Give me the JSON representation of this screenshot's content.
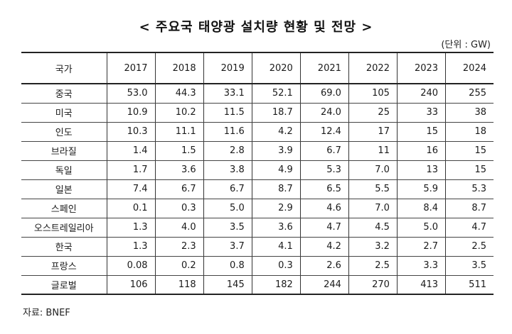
{
  "title": "< 주요국 태양광 설치량 현황 및 전망 >",
  "unit": "(단위 : GW)",
  "table": {
    "header": {
      "country": "국가",
      "years": [
        "2017",
        "2018",
        "2019",
        "2020",
        "2021",
        "2022",
        "2023",
        "2024"
      ]
    },
    "rows": [
      {
        "country": "중국",
        "values": [
          "53.0",
          "44.3",
          "33.1",
          "52.1",
          "69.0",
          "105",
          "240",
          "255"
        ]
      },
      {
        "country": "미국",
        "values": [
          "10.9",
          "10.2",
          "11.5",
          "18.7",
          "24.0",
          "25",
          "33",
          "38"
        ]
      },
      {
        "country": "인도",
        "values": [
          "10.3",
          "11.1",
          "11.6",
          "4.2",
          "12.4",
          "17",
          "15",
          "18"
        ]
      },
      {
        "country": "브라질",
        "values": [
          "1.4",
          "1.5",
          "2.8",
          "3.9",
          "6.7",
          "11",
          "16",
          "15"
        ]
      },
      {
        "country": "독일",
        "values": [
          "1.7",
          "3.6",
          "3.8",
          "4.9",
          "5.3",
          "7.0",
          "13",
          "15"
        ]
      },
      {
        "country": "일본",
        "values": [
          "7.4",
          "6.7",
          "6.7",
          "8.7",
          "6.5",
          "5.5",
          "5.9",
          "5.3"
        ]
      },
      {
        "country": "스페인",
        "values": [
          "0.1",
          "0.3",
          "5.0",
          "2.9",
          "4.6",
          "7.0",
          "8.4",
          "8.7"
        ]
      },
      {
        "country": "오스트레일리아",
        "values": [
          "1.3",
          "4.0",
          "3.5",
          "3.6",
          "4.7",
          "4.5",
          "5.0",
          "4.7"
        ]
      },
      {
        "country": "한국",
        "values": [
          "1.3",
          "2.3",
          "3.7",
          "4.1",
          "4.2",
          "3.2",
          "2.7",
          "2.5"
        ]
      },
      {
        "country": "프랑스",
        "values": [
          "0.08",
          "0.2",
          "0.8",
          "0.3",
          "2.6",
          "2.5",
          "3.3",
          "3.5"
        ]
      },
      {
        "country": "글로벌",
        "values": [
          "106",
          "118",
          "145",
          "182",
          "244",
          "270",
          "413",
          "511"
        ]
      }
    ]
  },
  "source": "자료: BNEF"
}
